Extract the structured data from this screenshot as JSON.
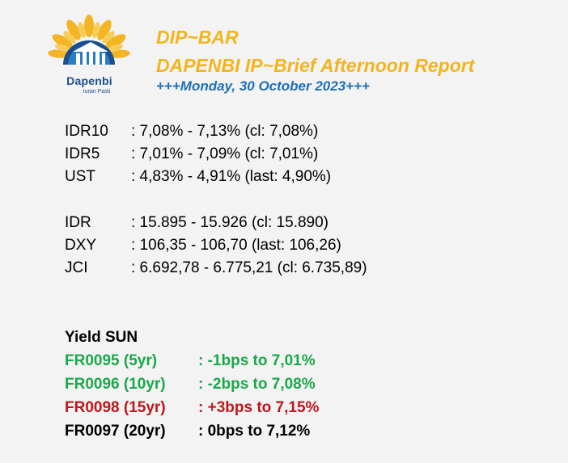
{
  "header": {
    "logo": {
      "name": "Dapenbi",
      "tagline": "Iuran Pasti"
    },
    "title": "DIP~BAR",
    "subtitle": "DAPENBI IP~Brief Afternoon Report",
    "date": "+++Monday, 30 October 2023+++"
  },
  "bond_rates": [
    {
      "label": "IDR10",
      "value": ": 7,08% - 7,13% (cl: 7,08%)"
    },
    {
      "label": "IDR5",
      "value": ": 7,01% - 7,09% (cl: 7,01%)"
    },
    {
      "label": "UST",
      "value": ": 4,83% - 4,91% (last: 4,90%)"
    }
  ],
  "market_rates": [
    {
      "label": "IDR",
      "value": ": 15.895 - 15.926 (cl: 15.890)"
    },
    {
      "label": "DXY",
      "value": ": 106,35 - 106,70 (last: 106,26)"
    },
    {
      "label": "JCI",
      "value": ": 6.692,78 - 6.775,21 (cl: 6.735,89)"
    }
  ],
  "yield_sun": {
    "heading": "Yield SUN",
    "items": [
      {
        "label": "FR0095 (5yr)",
        "value": ": -1bps to 7,01%",
        "color": "#1aa84a"
      },
      {
        "label": "FR0096 (10yr)",
        "value": ": -2bps to 7,08%",
        "color": "#1aa84a"
      },
      {
        "label": "FR0098 (15yr)",
        "value": ": +3bps to 7,15%",
        "color": "#c0161b"
      },
      {
        "label": "FR0097 (20yr)",
        "value": ": 0bps to 7,12%",
        "color": "#000000"
      }
    ]
  },
  "colors": {
    "title": "#f2b51d",
    "date": "#1f6fb5",
    "logo_blue": "#1b4f8c",
    "positive": "#1aa84a",
    "negative": "#c0161b"
  }
}
